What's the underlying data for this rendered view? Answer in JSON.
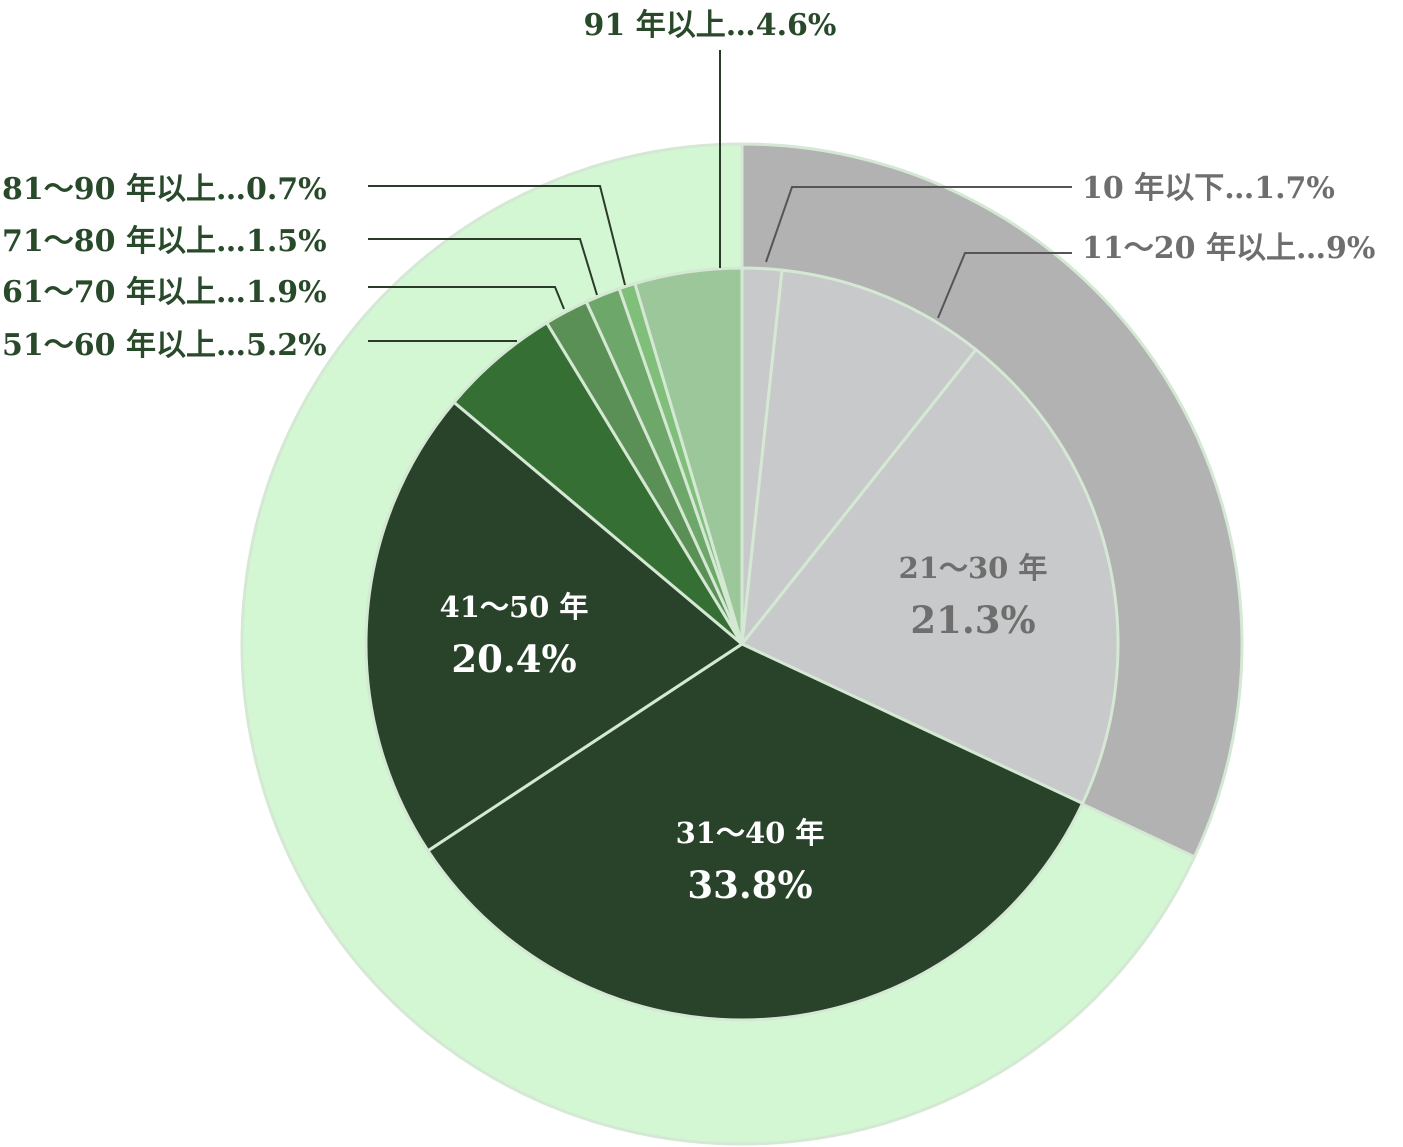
{
  "chart_data": {
    "type": "pie",
    "title": "",
    "series": [
      {
        "slices": [
          {
            "label": "10年以下",
            "value": 1.7,
            "display": "10 年以下…1.7%",
            "color": "#c8c9ca",
            "label_style": "callout"
          },
          {
            "label": "11～20年以上",
            "value": 9,
            "display": "11～20 年以上…9%",
            "color": "#c8c9ca",
            "label_style": "callout"
          },
          {
            "label": "21～30年",
            "value": 21.3,
            "display_name": "21～30 年",
            "display_value": "21.3%",
            "color": "#c8c9ca",
            "label_style": "inside-gray"
          },
          {
            "label": "31～40年",
            "value": 33.8,
            "display_name": "31～40 年",
            "display_value": "33.8%",
            "color": "#284329",
            "label_style": "inside-white"
          },
          {
            "label": "41～50年",
            "value": 20.4,
            "display_name": "41～50 年",
            "display_value": "20.4%",
            "color": "#284329",
            "label_style": "inside-white"
          },
          {
            "label": "51～60年以上",
            "value": 5.2,
            "display": "51～60 年以上…5.2%",
            "color": "#356f34",
            "label_style": "callout"
          },
          {
            "label": "61～70年以上",
            "value": 1.9,
            "display": "61～70 年以上…1.9%",
            "color": "#5a9056",
            "label_style": "callout"
          },
          {
            "label": "71～80年以上",
            "value": 1.5,
            "display": "71～80 年以上…1.5%",
            "color": "#6ea76a",
            "label_style": "callout"
          },
          {
            "label": "81～90年以上",
            "value": 0.7,
            "display": "81～90 年以上…0.7%",
            "color": "#7fbf7a",
            "label_style": "callout"
          },
          {
            "label": "91年以上",
            "value": 4.6,
            "display": "91 年以上…4.6%",
            "color": "#9bc79a",
            "label_style": "callout"
          }
        ]
      }
    ],
    "outer_ring": [
      {
        "value": 32,
        "color": "#b2b2b2"
      },
      {
        "value": 68,
        "color": "#d3f7d3"
      }
    ],
    "separator_color": "#d4e8d4"
  }
}
